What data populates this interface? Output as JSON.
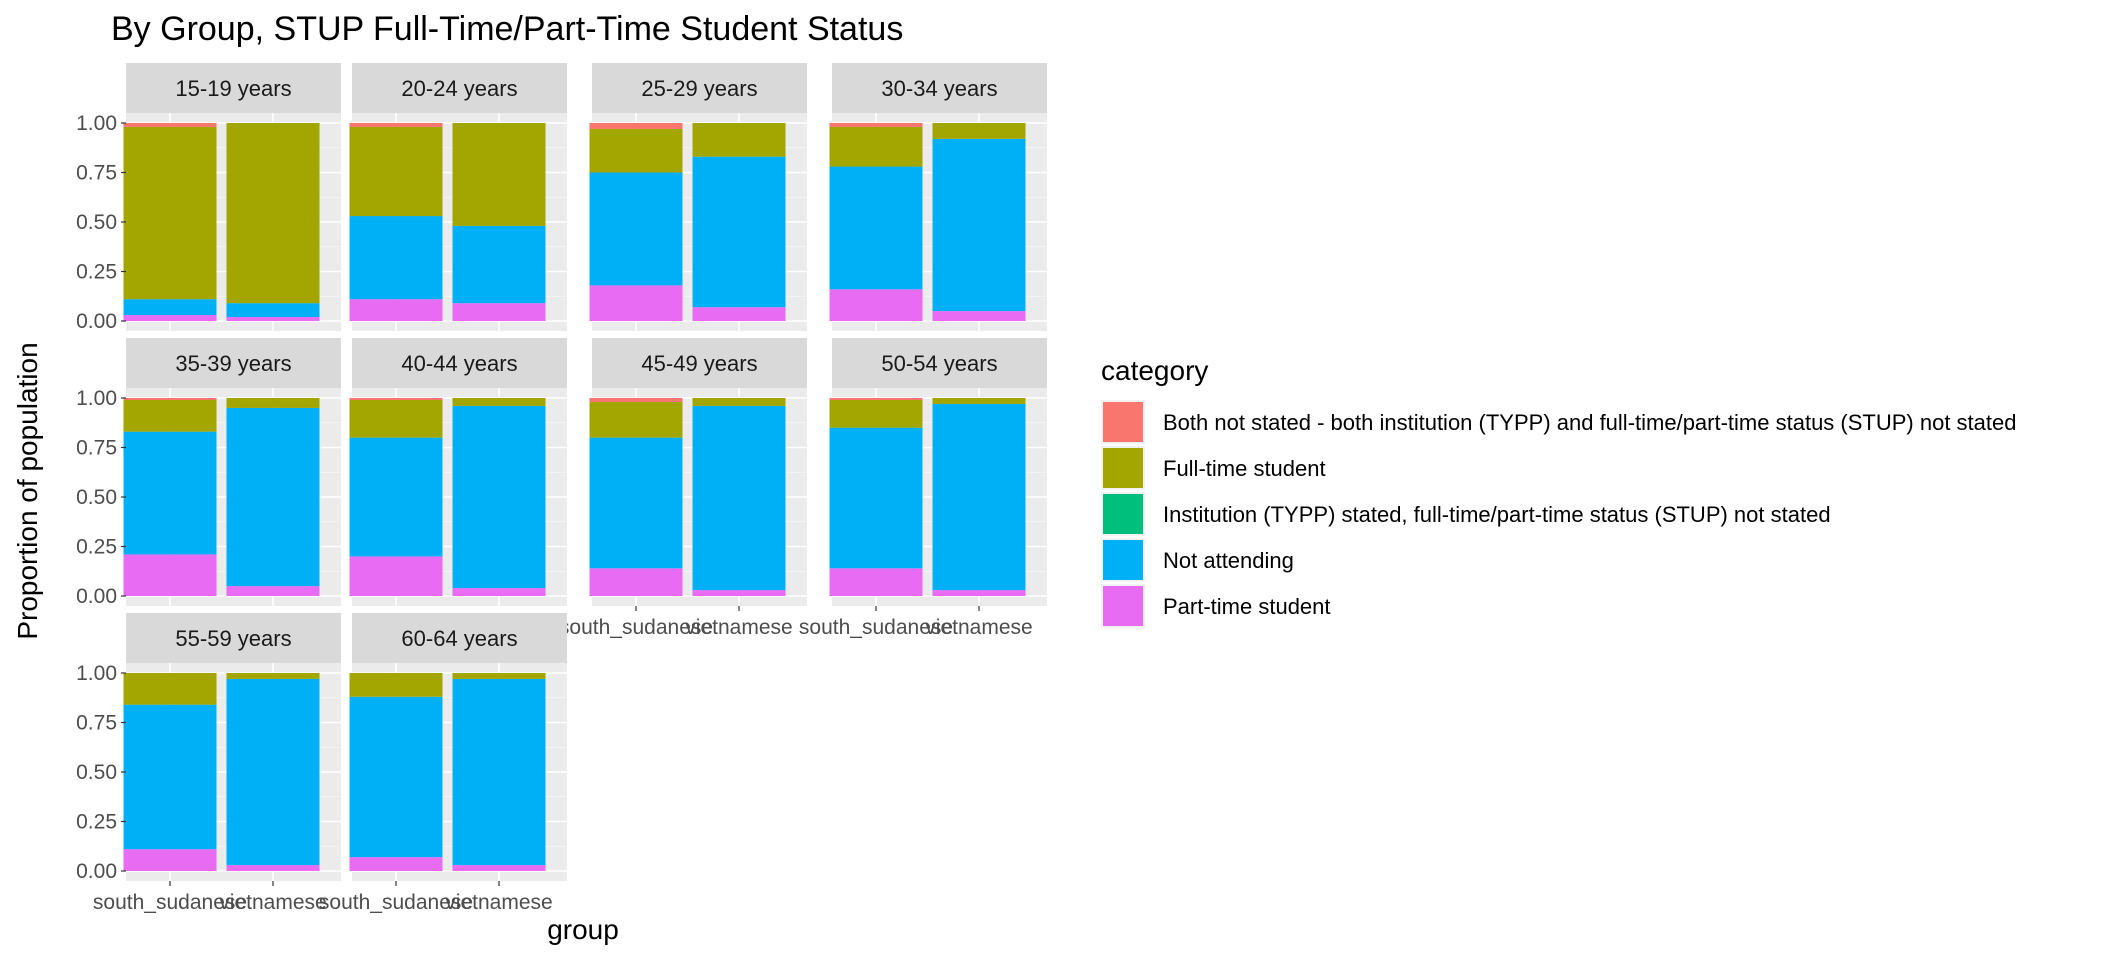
{
  "chart_data": {
    "type": "bar",
    "stacked": true,
    "normalized": true,
    "title": "By Group,  STUP Full-Time/Part-Time Student Status",
    "xlabel": "group",
    "ylabel": "Proportion of population",
    "ylim": [
      0,
      1
    ],
    "yticks": [
      "0.00",
      "0.25",
      "0.50",
      "0.75",
      "1.00"
    ],
    "grid": true,
    "legend_position": "right",
    "categories": [
      "south_sudanese",
      "vietnamese"
    ],
    "legend": {
      "title": "category",
      "entries": [
        {
          "label": "Both not stated - both institution (TYPP) and full-time/part-time status (STUP) not stated",
          "color": "#F8766D"
        },
        {
          "label": "Full-time student",
          "color": "#A3A500"
        },
        {
          "label": "Institution (TYPP) stated, full-time/part-time status (STUP) not stated",
          "color": "#00BF7D"
        },
        {
          "label": "Not attending",
          "color": "#00B0F6"
        },
        {
          "label": "Part-time student",
          "color": "#E76BF3"
        }
      ]
    },
    "stack_order_bottom_to_top": [
      "Part-time student",
      "Not attending",
      "Institution (TYPP) stated, full-time/part-time status (STUP) not stated",
      "Full-time student",
      "Both not stated - both institution (TYPP) and full-time/part-time status (STUP) not stated"
    ],
    "facets": [
      {
        "label": "15-19 years",
        "bars": [
          {
            "group": "south_sudanese",
            "Part-time student": 0.03,
            "Not attending": 0.08,
            "Institution (TYPP) stated, full-time/part-time status (STUP) not stated": 0.0,
            "Full-time student": 0.87,
            "Both not stated - both institution (TYPP) and full-time/part-time status (STUP) not stated": 0.02
          },
          {
            "group": "vietnamese",
            "Part-time student": 0.02,
            "Not attending": 0.07,
            "Institution (TYPP) stated, full-time/part-time status (STUP) not stated": 0.0,
            "Full-time student": 0.91,
            "Both not stated - both institution (TYPP) and full-time/part-time status (STUP) not stated": 0.0
          }
        ]
      },
      {
        "label": "20-24 years",
        "bars": [
          {
            "group": "south_sudanese",
            "Part-time student": 0.11,
            "Not attending": 0.42,
            "Institution (TYPP) stated, full-time/part-time status (STUP) not stated": 0.0,
            "Full-time student": 0.45,
            "Both not stated - both institution (TYPP) and full-time/part-time status (STUP) not stated": 0.02
          },
          {
            "group": "vietnamese",
            "Part-time student": 0.09,
            "Not attending": 0.39,
            "Institution (TYPP) stated, full-time/part-time status (STUP) not stated": 0.0,
            "Full-time student": 0.52,
            "Both not stated - both institution (TYPP) and full-time/part-time status (STUP) not stated": 0.0
          }
        ]
      },
      {
        "label": "25-29 years",
        "bars": [
          {
            "group": "south_sudanese",
            "Part-time student": 0.18,
            "Not attending": 0.57,
            "Institution (TYPP) stated, full-time/part-time status (STUP) not stated": 0.0,
            "Full-time student": 0.22,
            "Both not stated - both institution (TYPP) and full-time/part-time status (STUP) not stated": 0.03
          },
          {
            "group": "vietnamese",
            "Part-time student": 0.07,
            "Not attending": 0.76,
            "Institution (TYPP) stated, full-time/part-time status (STUP) not stated": 0.0,
            "Full-time student": 0.17,
            "Both not stated - both institution (TYPP) and full-time/part-time status (STUP) not stated": 0.0
          }
        ]
      },
      {
        "label": "30-34 years",
        "bars": [
          {
            "group": "south_sudanese",
            "Part-time student": 0.16,
            "Not attending": 0.62,
            "Institution (TYPP) stated, full-time/part-time status (STUP) not stated": 0.0,
            "Full-time student": 0.2,
            "Both not stated - both institution (TYPP) and full-time/part-time status (STUP) not stated": 0.02
          },
          {
            "group": "vietnamese",
            "Part-time student": 0.05,
            "Not attending": 0.87,
            "Institution (TYPP) stated, full-time/part-time status (STUP) not stated": 0.0,
            "Full-time student": 0.08,
            "Both not stated - both institution (TYPP) and full-time/part-time status (STUP) not stated": 0.0
          }
        ]
      },
      {
        "label": "35-39 years",
        "bars": [
          {
            "group": "south_sudanese",
            "Part-time student": 0.21,
            "Not attending": 0.62,
            "Institution (TYPP) stated, full-time/part-time status (STUP) not stated": 0.0,
            "Full-time student": 0.16,
            "Both not stated - both institution (TYPP) and full-time/part-time status (STUP) not stated": 0.01
          },
          {
            "group": "vietnamese",
            "Part-time student": 0.05,
            "Not attending": 0.9,
            "Institution (TYPP) stated, full-time/part-time status (STUP) not stated": 0.0,
            "Full-time student": 0.05,
            "Both not stated - both institution (TYPP) and full-time/part-time status (STUP) not stated": 0.0
          }
        ]
      },
      {
        "label": "40-44 years",
        "bars": [
          {
            "group": "south_sudanese",
            "Part-time student": 0.2,
            "Not attending": 0.6,
            "Institution (TYPP) stated, full-time/part-time status (STUP) not stated": 0.0,
            "Full-time student": 0.19,
            "Both not stated - both institution (TYPP) and full-time/part-time status (STUP) not stated": 0.01
          },
          {
            "group": "vietnamese",
            "Part-time student": 0.04,
            "Not attending": 0.92,
            "Institution (TYPP) stated, full-time/part-time status (STUP) not stated": 0.0,
            "Full-time student": 0.04,
            "Both not stated - both institution (TYPP) and full-time/part-time status (STUP) not stated": 0.0
          }
        ]
      },
      {
        "label": "45-49 years",
        "bars": [
          {
            "group": "south_sudanese",
            "Part-time student": 0.14,
            "Not attending": 0.66,
            "Institution (TYPP) stated, full-time/part-time status (STUP) not stated": 0.0,
            "Full-time student": 0.18,
            "Both not stated - both institution (TYPP) and full-time/part-time status (STUP) not stated": 0.02
          },
          {
            "group": "vietnamese",
            "Part-time student": 0.03,
            "Not attending": 0.93,
            "Institution (TYPP) stated, full-time/part-time status (STUP) not stated": 0.0,
            "Full-time student": 0.04,
            "Both not stated - both institution (TYPP) and full-time/part-time status (STUP) not stated": 0.0
          }
        ]
      },
      {
        "label": "50-54 years",
        "bars": [
          {
            "group": "south_sudanese",
            "Part-time student": 0.14,
            "Not attending": 0.71,
            "Institution (TYPP) stated, full-time/part-time status (STUP) not stated": 0.0,
            "Full-time student": 0.14,
            "Both not stated - both institution (TYPP) and full-time/part-time status (STUP) not stated": 0.01
          },
          {
            "group": "vietnamese",
            "Part-time student": 0.03,
            "Not attending": 0.94,
            "Institution (TYPP) stated, full-time/part-time status (STUP) not stated": 0.0,
            "Full-time student": 0.03,
            "Both not stated - both institution (TYPP) and full-time/part-time status (STUP) not stated": 0.0
          }
        ]
      },
      {
        "label": "55-59 years",
        "bars": [
          {
            "group": "south_sudanese",
            "Part-time student": 0.11,
            "Not attending": 0.73,
            "Institution (TYPP) stated, full-time/part-time status (STUP) not stated": 0.0,
            "Full-time student": 0.16,
            "Both not stated - both institution (TYPP) and full-time/part-time status (STUP) not stated": 0.0
          },
          {
            "group": "vietnamese",
            "Part-time student": 0.03,
            "Not attending": 0.94,
            "Institution (TYPP) stated, full-time/part-time status (STUP) not stated": 0.0,
            "Full-time student": 0.03,
            "Both not stated - both institution (TYPP) and full-time/part-time status (STUP) not stated": 0.0
          }
        ]
      },
      {
        "label": "60-64 years",
        "bars": [
          {
            "group": "south_sudanese",
            "Part-time student": 0.07,
            "Not attending": 0.81,
            "Institution (TYPP) stated, full-time/part-time status (STUP) not stated": 0.0,
            "Full-time student": 0.12,
            "Both not stated - both institution (TYPP) and full-time/part-time status (STUP) not stated": 0.0
          },
          {
            "group": "vietnamese",
            "Part-time student": 0.03,
            "Not attending": 0.94,
            "Institution (TYPP) stated, full-time/part-time status (STUP) not stated": 0.0,
            "Full-time student": 0.03,
            "Both not stated - both institution (TYPP) and full-time/part-time status (STUP) not stated": 0.0
          }
        ]
      }
    ]
  }
}
